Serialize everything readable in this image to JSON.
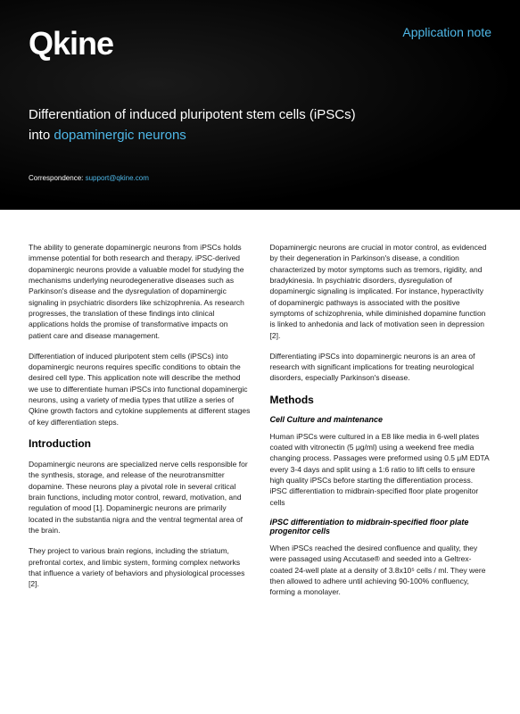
{
  "header": {
    "logo_text": "Qkine",
    "app_note_label": "Application note",
    "title_line1": "Differentiation of induced pluripotent stem cells (iPSCs)",
    "title_line2_prefix": "into ",
    "title_line2_highlight": "dopaminergic neurons",
    "correspondence_label": "Correspondence: ",
    "correspondence_email": "support@qkine.com"
  },
  "left_col": {
    "p1": "The ability to generate dopaminergic neurons from iPSCs holds immense potential for both research and therapy. iPSC-derived dopaminergic neurons provide a valuable model for studying the mechanisms underlying neurodegenerative diseases such as Parkinson's disease and the dysregulation of dopaminergic signaling in psychiatric disorders like schizophrenia. As research progresses, the translation of these findings into clinical applications holds the promise of transformative impacts on patient care and disease management.",
    "p2": "Differentiation of induced pluripotent stem cells (iPSCs) into dopaminergic neurons requires specific conditions to obtain the desired cell type. This application note will describe the method we use to differentiate human iPSCs into functional dopaminergic neurons, using a variety of media types that utilize a series of Qkine growth factors and cytokine supplements at different stages of key differentiation steps.",
    "h_intro": "Introduction",
    "p3": "Dopaminergic neurons are specialized nerve cells responsible for the synthesis, storage, and release of the neurotransmitter dopamine. These neurons play a pivotal role in several critical brain functions, including motor control, reward, motivation, and regulation of mood [1]. Dopaminergic neurons are primarily located in the substantia nigra and the ventral tegmental area of the brain.",
    "p4": "They project to various brain regions, including the striatum, prefrontal cortex, and limbic system, forming complex networks that influence a variety of behaviors and physiological processes [2]."
  },
  "right_col": {
    "p1": "Dopaminergic neurons are crucial in motor control, as evidenced by their degeneration in Parkinson's disease, a condition characterized by motor symptoms such as tremors, rigidity, and bradykinesia. In psychiatric disorders, dysregulation of dopaminergic signaling is implicated. For instance, hyperactivity of dopaminergic pathways is associated with the positive symptoms of schizophrenia, while diminished dopamine function is linked to anhedonia and lack of motivation seen in depression [2].",
    "p2": "Differentiating iPSCs into dopaminergic neurons is an area of research with significant implications for treating neurological disorders, especially Parkinson's disease.",
    "h_methods": "Methods",
    "h_cell": "Cell Culture and maintenance",
    "p3": "Human iPSCs were cultured in a E8 like media in 6-well plates coated with vitronectin (5 μg/ml) using a weekend free media changing process. Passages were preformed using 0.5 μM EDTA every 3-4 days and split using a 1:6 ratio to lift cells to ensure high quality iPSCs before starting the differentiation process. iPSC differentiation to midbrain-specified floor plate progenitor cells",
    "h_ipsc": "iPSC differentiation to midbrain-specified floor plate progenitor cells",
    "p4": "When iPSCs reached the desired confluence and quality, they were passaged using Accutase® and seeded into a Geltrex-coated 24-well plate at a density of 3.8x10⁵ cells / ml. They were then allowed to adhere until achieving 90-100% confluency, forming a monolayer."
  },
  "colors": {
    "accent": "#4fb8e8",
    "header_bg": "#000000",
    "text": "#1a1a1a",
    "white": "#ffffff"
  }
}
